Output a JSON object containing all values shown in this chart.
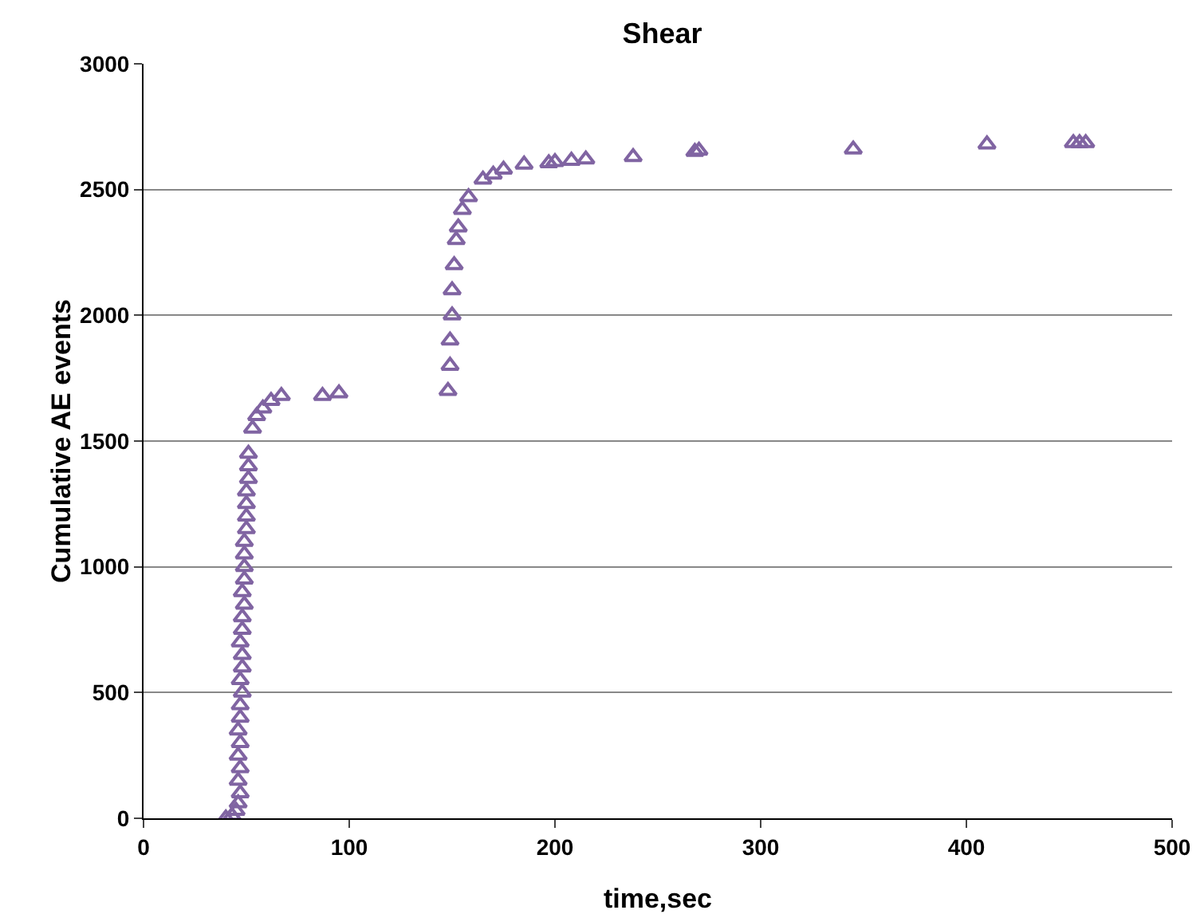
{
  "chart_data": {
    "type": "scatter",
    "title": "Shear",
    "xlabel": "time,sec",
    "ylabel": "Cumulative AE events",
    "xlim": [
      0,
      500
    ],
    "xticks": [
      0,
      100,
      200,
      300,
      400,
      500
    ],
    "ylim": [
      0,
      3000
    ],
    "yticks": [
      0,
      500,
      1000,
      1500,
      2000,
      2500,
      3000
    ],
    "grid": "y",
    "marker": "triangle",
    "series": [
      {
        "color": "#8064a2",
        "x": [
          40,
          43,
          45,
          46,
          47,
          46,
          47,
          46,
          47,
          46,
          47,
          47,
          48,
          47,
          48,
          48,
          47,
          48,
          48,
          49,
          48,
          49,
          49,
          49,
          49,
          50,
          50,
          50,
          50,
          51,
          51,
          51,
          53,
          55,
          58,
          62,
          67,
          87,
          95,
          148,
          149,
          149,
          150,
          150,
          151,
          152,
          153,
          155,
          158,
          165,
          170,
          175,
          185,
          197,
          200,
          208,
          215,
          238,
          268,
          270,
          345,
          410,
          452,
          455,
          458
        ],
        "values": [
          0,
          10,
          30,
          60,
          100,
          150,
          200,
          250,
          300,
          350,
          400,
          450,
          500,
          550,
          600,
          650,
          700,
          750,
          800,
          850,
          900,
          950,
          1000,
          1050,
          1100,
          1150,
          1200,
          1250,
          1300,
          1350,
          1400,
          1450,
          1550,
          1600,
          1630,
          1660,
          1680,
          1680,
          1690,
          1700,
          1800,
          1900,
          2000,
          2100,
          2200,
          2300,
          2350,
          2420,
          2470,
          2540,
          2560,
          2580,
          2600,
          2605,
          2610,
          2615,
          2620,
          2630,
          2650,
          2655,
          2660,
          2680,
          2685,
          2685,
          2685
        ]
      }
    ]
  }
}
